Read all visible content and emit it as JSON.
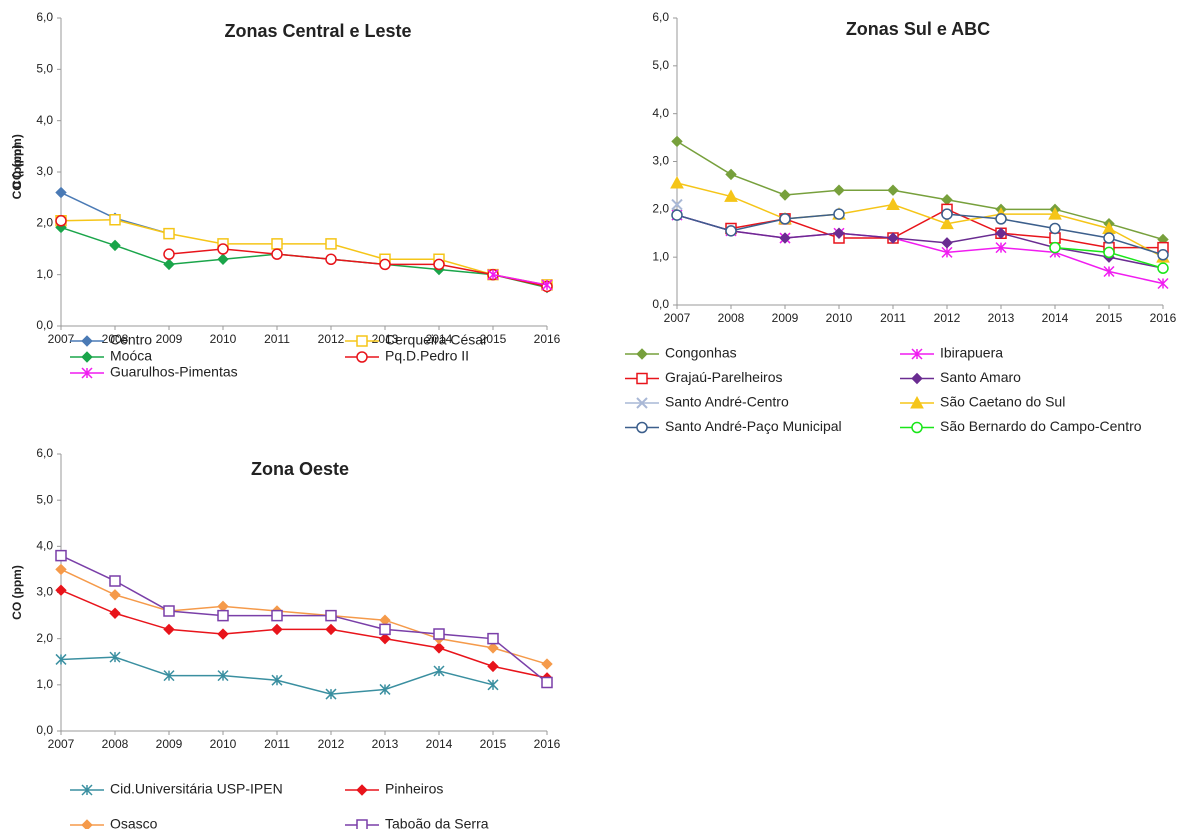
{
  "chart_data": [
    {
      "type": "line",
      "title": "Zonas Central e Leste",
      "y_label": "CO (ppm)",
      "x": [
        2007,
        2008,
        2009,
        2010,
        2011,
        2012,
        2013,
        2014,
        2015,
        2016
      ],
      "xlim": [
        2007,
        2016
      ],
      "xticks": [
        2007,
        2008,
        2009,
        2010,
        2011,
        2012,
        2013,
        2014,
        2015,
        2016
      ],
      "ylim": [
        0,
        6
      ],
      "yticks": [
        {
          "value": 0,
          "label": "0,0"
        },
        {
          "value": 1,
          "label": "1,0"
        },
        {
          "value": 2,
          "label": "2,0"
        },
        {
          "value": 3,
          "label": "3,0"
        },
        {
          "value": 4,
          "label": "4,0"
        },
        {
          "value": 5,
          "label": "5,0"
        },
        {
          "value": 6,
          "label": "6,0"
        }
      ],
      "series": [
        {
          "name": "Centro",
          "color": "#4a7ab5",
          "marker": "diamond",
          "values": [
            2.6,
            2.1,
            1.8,
            null,
            null,
            null,
            null,
            null,
            null,
            0.77
          ]
        },
        {
          "name": "Cerqueira César",
          "color": "#f5c518",
          "marker": "square",
          "values": [
            2.05,
            2.07,
            1.8,
            1.6,
            1.6,
            1.6,
            1.3,
            1.3,
            1.0,
            0.8
          ]
        },
        {
          "name": "Moóca",
          "color": "#1aa54a",
          "marker": "diamond",
          "values": [
            1.92,
            1.57,
            1.2,
            1.3,
            1.4,
            1.3,
            1.2,
            1.1,
            1.0,
            0.75
          ]
        },
        {
          "name": "Pq.D.Pedro II",
          "color": "#e8141b",
          "marker": "circle",
          "values": [
            2.05,
            null,
            1.4,
            1.5,
            1.4,
            1.3,
            1.2,
            1.2,
            1.0,
            0.77
          ]
        },
        {
          "name": "Guarulhos-Pimentas",
          "color": "#f01cf0",
          "marker": "star",
          "values": [
            null,
            null,
            null,
            null,
            null,
            null,
            null,
            null,
            1.0,
            0.8
          ]
        }
      ]
    },
    {
      "type": "line",
      "title": "Zonas Sul e ABC",
      "y_label": "CO (ppm)",
      "x": [
        2007,
        2008,
        2009,
        2010,
        2011,
        2012,
        2013,
        2014,
        2015,
        2016
      ],
      "xlim": [
        2007,
        2016
      ],
      "xticks": [
        2007,
        2008,
        2009,
        2010,
        2011,
        2012,
        2013,
        2014,
        2015,
        2016
      ],
      "ylim": [
        0,
        6
      ],
      "yticks": [
        {
          "value": 0,
          "label": "0,0"
        },
        {
          "value": 1,
          "label": "1,0"
        },
        {
          "value": 2,
          "label": "2,0"
        },
        {
          "value": 3,
          "label": "3,0"
        },
        {
          "value": 4,
          "label": "4,0"
        },
        {
          "value": 5,
          "label": "5,0"
        },
        {
          "value": 6,
          "label": "6,0"
        }
      ],
      "series": [
        {
          "name": "Congonhas",
          "color": "#77a03c",
          "marker": "diamond",
          "values": [
            3.42,
            2.73,
            2.3,
            2.4,
            2.4,
            2.2,
            2.0,
            2.0,
            1.7,
            1.37
          ]
        },
        {
          "name": "Ibirapuera",
          "color": "#f01cf0",
          "marker": "star",
          "values": [
            1.88,
            1.55,
            1.4,
            1.5,
            1.4,
            1.1,
            1.2,
            1.1,
            0.7,
            0.45
          ]
        },
        {
          "name": "Grajaú-Parelheiros",
          "color": "#e8141b",
          "marker": "square",
          "values": [
            null,
            1.6,
            1.8,
            1.4,
            1.4,
            2.0,
            1.5,
            1.4,
            1.2,
            1.2
          ]
        },
        {
          "name": "Santo Amaro",
          "color": "#6a2c91",
          "marker": "diamond",
          "values": [
            1.88,
            1.55,
            1.4,
            1.5,
            1.4,
            1.3,
            1.5,
            1.2,
            1.0,
            0.77
          ]
        },
        {
          "name": "Santo André-Centro",
          "color": "#a9b8d6",
          "marker": "x",
          "values": [
            2.1,
            null,
            null,
            null,
            null,
            null,
            null,
            null,
            null,
            null
          ]
        },
        {
          "name": "São Caetano do Sul",
          "color": "#f5c518",
          "marker": "triangle",
          "values": [
            2.55,
            2.27,
            1.8,
            1.9,
            2.1,
            1.7,
            1.9,
            1.9,
            1.6,
            1.0
          ]
        },
        {
          "name": "Santo André-Paço Municipal",
          "color": "#3c5f8c",
          "marker": "circle",
          "values": [
            1.88,
            1.55,
            1.8,
            1.9,
            null,
            1.9,
            1.8,
            1.6,
            1.4,
            1.05
          ]
        },
        {
          "name": "São Bernardo do Campo-Centro",
          "color": "#19e619",
          "marker": "circle",
          "values": [
            null,
            null,
            null,
            null,
            null,
            null,
            null,
            1.2,
            1.1,
            0.77
          ]
        }
      ]
    },
    {
      "type": "line",
      "title": "Zona Oeste",
      "y_label": "CO (ppm)",
      "x": [
        2007,
        2008,
        2009,
        2010,
        2011,
        2012,
        2013,
        2014,
        2015,
        2016
      ],
      "xlim": [
        2007,
        2016
      ],
      "xticks": [
        2007,
        2008,
        2009,
        2010,
        2011,
        2012,
        2013,
        2014,
        2015,
        2016
      ],
      "ylim": [
        0,
        6
      ],
      "yticks": [
        {
          "value": 0,
          "label": "0,0"
        },
        {
          "value": 1,
          "label": "1,0"
        },
        {
          "value": 2,
          "label": "2,0"
        },
        {
          "value": 3,
          "label": "3,0"
        },
        {
          "value": 4,
          "label": "4,0"
        },
        {
          "value": 5,
          "label": "5,0"
        },
        {
          "value": 6,
          "label": "6,0"
        }
      ],
      "series": [
        {
          "name": "Cid.Universitária USP-IPEN",
          "color": "#3a8fa0",
          "marker": "star",
          "values": [
            1.55,
            1.6,
            1.2,
            1.2,
            1.1,
            0.8,
            0.9,
            1.3,
            1.0,
            null
          ]
        },
        {
          "name": "Pinheiros",
          "color": "#e8141b",
          "marker": "diamond",
          "values": [
            3.05,
            2.55,
            2.2,
            2.1,
            2.2,
            2.2,
            2.0,
            1.8,
            1.4,
            1.15
          ]
        },
        {
          "name": "Osasco",
          "color": "#f59a4a",
          "marker": "diamond",
          "values": [
            3.5,
            2.95,
            2.6,
            2.7,
            2.6,
            2.5,
            2.4,
            2.0,
            1.8,
            1.45
          ]
        },
        {
          "name": "Taboão da Serra",
          "color": "#7a3fa8",
          "marker": "square",
          "values": [
            3.8,
            3.25,
            2.6,
            2.5,
            2.5,
            2.5,
            2.2,
            2.1,
            2.0,
            1.05
          ]
        }
      ]
    }
  ]
}
